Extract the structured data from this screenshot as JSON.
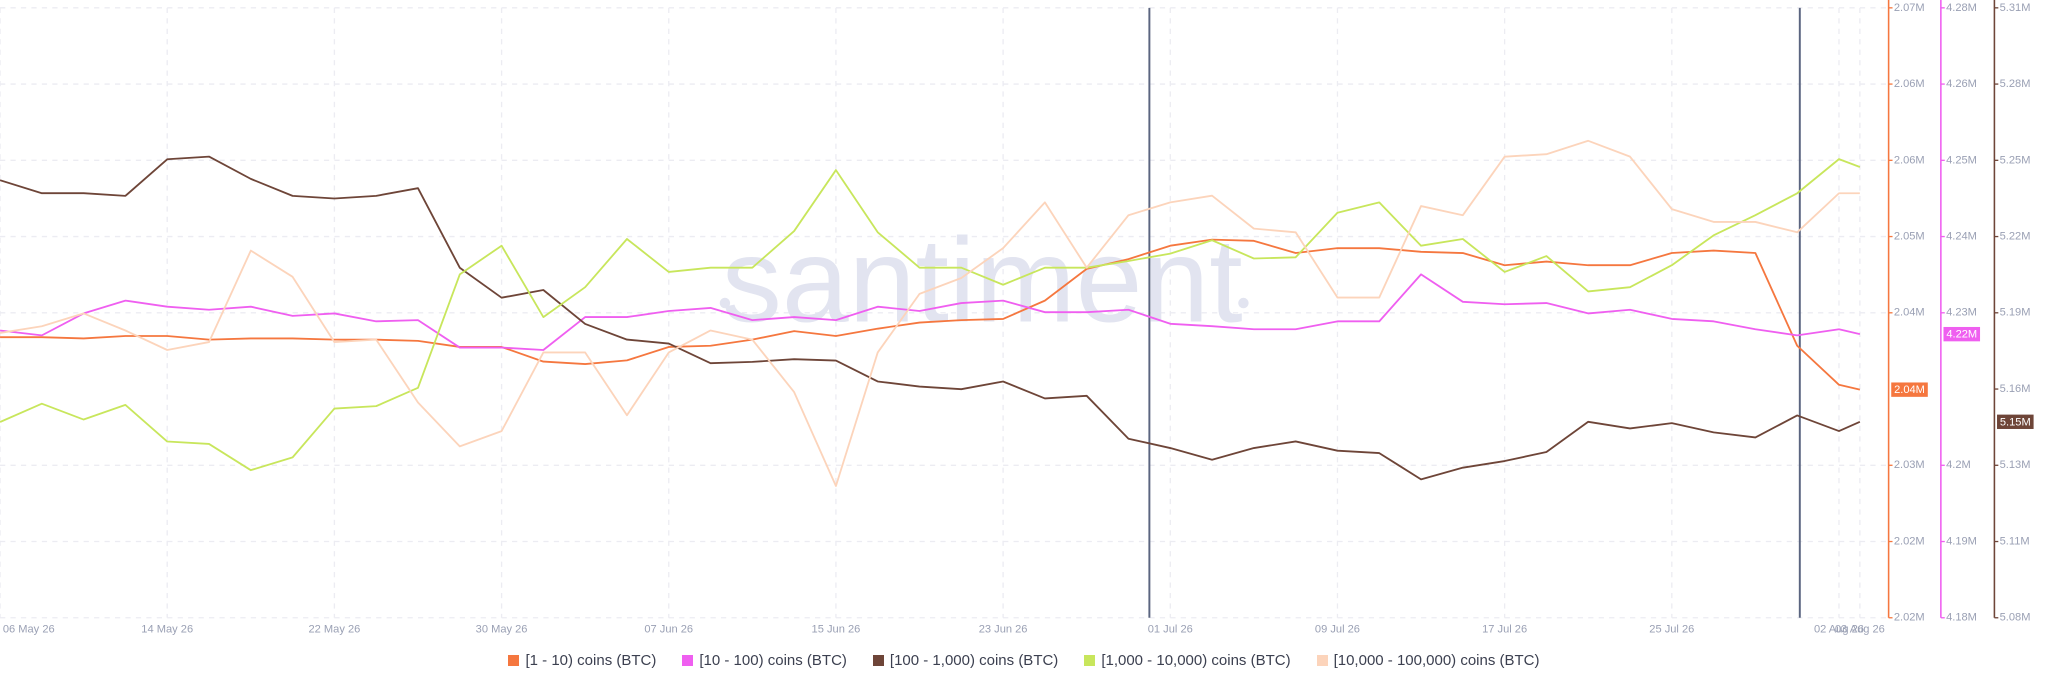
{
  "chart_data": {
    "type": "line",
    "watermark": "santiment",
    "x": [
      "2026-05-06",
      "2026-05-08",
      "2026-05-10",
      "2026-05-12",
      "2026-05-14",
      "2026-05-16",
      "2026-05-18",
      "2026-05-20",
      "2026-05-22",
      "2026-05-24",
      "2026-05-26",
      "2026-05-28",
      "2026-05-30",
      "2026-06-01",
      "2026-06-03",
      "2026-06-05",
      "2026-06-07",
      "2026-06-09",
      "2026-06-11",
      "2026-06-13",
      "2026-06-15",
      "2026-06-17",
      "2026-06-19",
      "2026-06-21",
      "2026-06-23",
      "2026-06-25",
      "2026-06-27",
      "2026-06-29",
      "2026-07-01",
      "2026-07-03",
      "2026-07-05",
      "2026-07-07",
      "2026-07-09",
      "2026-07-11",
      "2026-07-13",
      "2026-07-15",
      "2026-07-17",
      "2026-07-19",
      "2026-07-21",
      "2026-07-23",
      "2026-07-25",
      "2026-07-27",
      "2026-07-29",
      "2026-07-31",
      "2026-08-02",
      "2026-08-03"
    ],
    "xlim": [
      "2026-05-06",
      "2026-08-04"
    ],
    "xticks": [
      {
        "value": "2026-05-06",
        "label": "06 May 26"
      },
      {
        "value": "2026-05-14",
        "label": "14 May 26"
      },
      {
        "value": "2026-05-22",
        "label": "22 May 26"
      },
      {
        "value": "2026-05-30",
        "label": "30 May 26"
      },
      {
        "value": "2026-06-07",
        "label": "07 Jun 26"
      },
      {
        "value": "2026-06-15",
        "label": "15 Jun 26"
      },
      {
        "value": "2026-06-23",
        "label": "23 Jun 26"
      },
      {
        "value": "2026-07-01",
        "label": "01 Jul 26"
      },
      {
        "value": "2026-07-09",
        "label": "09 Jul 26"
      },
      {
        "value": "2026-07-17",
        "label": "17 Jul 26"
      },
      {
        "value": "2026-07-25",
        "label": "25 Jul 26"
      },
      {
        "value": "2026-08-02",
        "label": "02 Aug 26"
      },
      {
        "value": "2026-08-03",
        "label": "03 Aug 26"
      }
    ],
    "ylim": [
      2.0175,
      2.0675
    ],
    "yticks": [
      {
        "value": 2.0175,
        "label": "2.02M"
      },
      {
        "value": 2.02375,
        "label": "2.02M"
      },
      {
        "value": 2.03,
        "label": "2.03M"
      },
      {
        "value": 2.0425,
        "label": "2.04M"
      },
      {
        "value": 2.04875,
        "label": "2.05M"
      },
      {
        "value": 2.055,
        "label": "2.06M"
      },
      {
        "value": 2.06125,
        "label": "2.06M"
      },
      {
        "value": 2.0675,
        "label": "2.07M"
      }
    ],
    "y2lim": [
      4.18,
      4.28
    ],
    "y2ticks": [
      {
        "value": 4.18,
        "label": "4.18M"
      },
      {
        "value": 4.1925,
        "label": "4.19M"
      },
      {
        "value": 4.205,
        "label": "4.2M"
      },
      {
        "value": 4.23,
        "label": "4.23M"
      },
      {
        "value": 4.2425,
        "label": "4.24M"
      },
      {
        "value": 4.255,
        "label": "4.25M"
      },
      {
        "value": 4.2675,
        "label": "4.26M"
      },
      {
        "value": 4.28,
        "label": "4.28M"
      }
    ],
    "y3lim": [
      5.08,
      5.31
    ],
    "y3ticks": [
      {
        "value": 5.08,
        "label": "5.08M"
      },
      {
        "value": 5.10875,
        "label": "5.11M"
      },
      {
        "value": 5.1375,
        "label": "5.13M"
      },
      {
        "value": 5.16625,
        "label": "5.16M"
      },
      {
        "value": 5.195,
        "label": "5.19M"
      },
      {
        "value": 5.22375,
        "label": "5.22M"
      },
      {
        "value": 5.2525,
        "label": "5.25M"
      },
      {
        "value": 5.28125,
        "label": "5.28M"
      },
      {
        "value": 5.31,
        "label": "5.31M"
      }
    ],
    "y4lim": [
      0,
      100
    ],
    "y5lim": [
      0,
      100
    ],
    "grid": true,
    "series": [
      {
        "name": "[1 - 10) coins (BTC)",
        "color": "#f5773f",
        "axis": "y",
        "last_label": "2.04M",
        "values": [
          2.0405,
          2.0405,
          2.0404,
          2.0406,
          2.0406,
          2.0403,
          2.0404,
          2.0404,
          2.0403,
          2.0403,
          2.0402,
          2.0397,
          2.0397,
          2.0385,
          2.0383,
          2.0386,
          2.0397,
          2.0398,
          2.0403,
          2.041,
          2.0406,
          2.0412,
          2.0417,
          2.0419,
          2.042,
          2.0435,
          2.0461,
          2.0469,
          2.048,
          2.0485,
          2.0484,
          2.0474,
          2.0478,
          2.0478,
          2.0475,
          2.0474,
          2.0464,
          2.0467,
          2.0464,
          2.0464,
          2.0474,
          2.0476,
          2.0474,
          2.0398,
          2.0366,
          2.0362
        ]
      },
      {
        "name": "[10 - 100) coins (BTC)",
        "color": "#ef5ff0",
        "axis": "y2",
        "last_label": "4.22M",
        "values": [
          4.2271,
          4.2263,
          4.2299,
          4.232,
          4.231,
          4.2305,
          4.231,
          4.2295,
          4.2299,
          4.2286,
          4.2288,
          4.2243,
          4.2243,
          4.2239,
          4.2293,
          4.2293,
          4.2303,
          4.2308,
          4.2288,
          4.2293,
          4.2288,
          4.231,
          4.2303,
          4.2316,
          4.232,
          4.2301,
          4.2301,
          4.2305,
          4.2282,
          4.2278,
          4.2273,
          4.2273,
          4.2286,
          4.2286,
          4.2363,
          4.2318,
          4.2314,
          4.2316,
          4.2299,
          4.2305,
          4.229,
          4.2286,
          4.2273,
          4.2263,
          4.2273,
          4.2265
        ]
      },
      {
        "name": "[100 - 1,000) coins (BTC)",
        "color": "#6e4538",
        "axis": "y3",
        "last_label": "5.15M",
        "values": [
          5.245,
          5.2401,
          5.2401,
          5.2391,
          5.2529,
          5.2539,
          5.2455,
          5.2391,
          5.2381,
          5.2391,
          5.242,
          5.212,
          5.2007,
          5.2036,
          5.1908,
          5.1849,
          5.1834,
          5.176,
          5.1765,
          5.1775,
          5.177,
          5.1691,
          5.1672,
          5.1662,
          5.1691,
          5.1627,
          5.1637,
          5.1475,
          5.144,
          5.1396,
          5.144,
          5.1465,
          5.143,
          5.1421,
          5.1322,
          5.1366,
          5.1391,
          5.1425,
          5.1539,
          5.1514,
          5.1534,
          5.1499,
          5.148,
          5.1563,
          5.1504,
          5.1539
        ]
      },
      {
        "name": "[1,000 - 10,000) coins (BTC)",
        "color": "#c8e65c",
        "axis": "y4",
        "values": [
          32.1,
          35.1,
          32.5,
          34.9,
          28.9,
          28.5,
          24.2,
          26.3,
          34.3,
          34.7,
          37.7,
          56.3,
          61.0,
          49.3,
          54.2,
          62.1,
          56.7,
          57.4,
          57.4,
          63.4,
          73.4,
          63.2,
          57.4,
          57.4,
          54.6,
          57.4,
          57.4,
          58.5,
          59.7,
          61.9,
          58.9,
          59.1,
          66.4,
          68.1,
          61.0,
          62.1,
          56.7,
          59.3,
          53.5,
          54.2,
          57.8,
          62.7,
          66.0,
          69.6,
          75.2,
          73.9
        ]
      },
      {
        "name": "[10,000 - 100,000) coins (BTC)",
        "color": "#fcd4bb",
        "axis": "y5",
        "values": [
          46.7,
          47.8,
          49.9,
          47.1,
          43.9,
          45.2,
          60.2,
          55.9,
          45.2,
          45.6,
          35.3,
          28.1,
          30.6,
          43.5,
          43.5,
          33.2,
          43.5,
          47.1,
          45.6,
          37.0,
          21.6,
          43.5,
          53.1,
          55.7,
          60.6,
          68.1,
          57.4,
          66.0,
          68.1,
          69.2,
          63.8,
          63.2,
          52.5,
          52.5,
          67.5,
          66.0,
          75.6,
          76.0,
          78.2,
          75.6,
          67.0,
          64.9,
          64.9,
          63.2,
          69.6,
          69.6
        ]
      }
    ]
  }
}
